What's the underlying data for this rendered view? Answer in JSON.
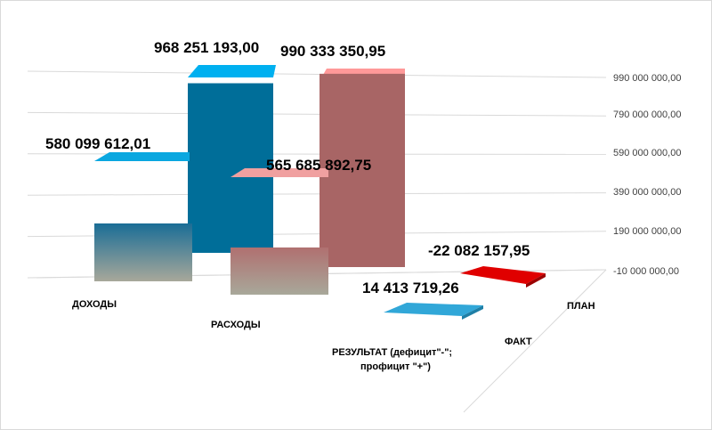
{
  "chart_data": {
    "type": "bar",
    "categories": [
      "ДОХОДЫ",
      "РАСХОДЫ",
      "РЕЗУЛЬТАТ (дефицит\"-\"; профицит \"+\")"
    ],
    "series": [
      {
        "name": "ФАКТ",
        "values": [
          580099612.01,
          565685892.75,
          14413719.26
        ],
        "labels": [
          "580 099 612,01",
          "565 685 892,75",
          "14 413 719,26"
        ]
      },
      {
        "name": "ПЛАН",
        "values": [
          968251193.0,
          990333350.95,
          -22082157.95
        ],
        "labels": [
          "968 251 193,00",
          "990 333 350,95",
          "-22 082 157,95"
        ]
      }
    ],
    "yticks": [
      "990 000 000,00",
      "790 000 000,00",
      "590 000 000,00",
      "390 000 000,00",
      "190 000 000,00",
      "-10 000 000,00"
    ],
    "ylim": [
      -10000000,
      990000000
    ],
    "grid": true,
    "legend": "none",
    "colors": {
      "fakt_income_top": "#00b0f0",
      "fakt_income_bottom": "#ffffe0",
      "fakt_expense_top": "#ff9999",
      "fakt_expense_bottom": "#ffffe0",
      "fakt_result": "#31a7d8",
      "plan_income": "#00b0f0",
      "plan_income_side": "#006e99",
      "plan_expense": "#ff9999",
      "plan_expense_side": "#a86565",
      "plan_result": "#e00000"
    }
  }
}
